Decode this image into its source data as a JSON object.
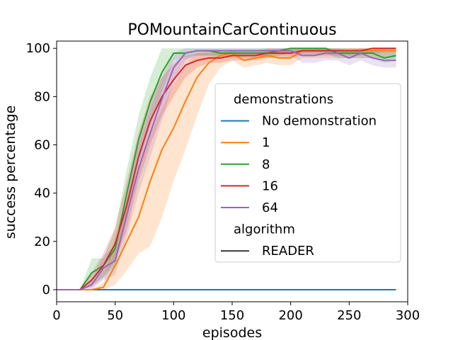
{
  "chart_data": {
    "type": "line",
    "title": "POMountainCarContinuous",
    "xlabel": "episodes",
    "ylabel": "success percentage",
    "xlim": [
      0,
      300
    ],
    "ylim": [
      -5,
      103
    ],
    "xticks": [
      0,
      50,
      100,
      150,
      200,
      250,
      300
    ],
    "yticks": [
      0,
      20,
      40,
      60,
      80,
      100
    ],
    "grid": false,
    "legend": {
      "placement": "center-right",
      "groups": [
        {
          "title": "demonstrations",
          "entries": [
            {
              "label": "No demonstration",
              "color": "#1f77b4"
            },
            {
              "label": "1",
              "color": "#ff7f0e"
            },
            {
              "label": "8",
              "color": "#2ca02c"
            },
            {
              "label": "16",
              "color": "#d62728"
            },
            {
              "label": "64",
              "color": "#9467bd"
            }
          ]
        },
        {
          "title": "algorithm",
          "entries": [
            {
              "label": "READER",
              "color": "#333333"
            }
          ]
        }
      ]
    },
    "x": [
      0,
      10,
      20,
      30,
      40,
      50,
      60,
      70,
      80,
      90,
      100,
      110,
      120,
      130,
      140,
      150,
      160,
      170,
      180,
      190,
      200,
      210,
      220,
      230,
      240,
      250,
      260,
      270,
      280,
      290
    ],
    "series": [
      {
        "name": "No demonstration",
        "color": "#1f77b4",
        "values": [
          0,
          0,
          0,
          0,
          0,
          0,
          0,
          0,
          0,
          0,
          0,
          0,
          0,
          0,
          0,
          0,
          0,
          0,
          0,
          0,
          0,
          0,
          0,
          0,
          0,
          0,
          0,
          0,
          0,
          0
        ],
        "lower": [
          0,
          0,
          0,
          0,
          0,
          0,
          0,
          0,
          0,
          0,
          0,
          0,
          0,
          0,
          0,
          0,
          0,
          0,
          0,
          0,
          0,
          0,
          0,
          0,
          0,
          0,
          0,
          0,
          0,
          0
        ],
        "upper": [
          0,
          0,
          0,
          0,
          0,
          0,
          0,
          0,
          0,
          0,
          0,
          0,
          0,
          0,
          0,
          0,
          0,
          0,
          0,
          0,
          0,
          0,
          0,
          0,
          0,
          0,
          0,
          0,
          0,
          0
        ]
      },
      {
        "name": "1",
        "color": "#ff7f0e",
        "values": [
          0,
          0,
          0,
          0,
          1,
          10,
          20,
          30,
          45,
          58,
          67,
          78,
          88,
          94,
          97,
          98,
          95,
          96,
          97,
          96,
          96,
          99,
          99,
          99,
          99,
          99,
          99,
          99,
          99,
          99
        ],
        "lower": [
          0,
          0,
          0,
          0,
          0,
          2,
          8,
          15,
          18,
          30,
          45,
          58,
          72,
          85,
          92,
          95,
          92,
          93,
          94,
          93,
          93,
          96,
          96,
          96,
          96,
          96,
          96,
          96,
          96,
          96
        ],
        "upper": [
          0,
          0,
          0,
          0,
          3,
          22,
          38,
          50,
          65,
          75,
          85,
          93,
          98,
          99,
          99,
          99,
          98,
          98,
          99,
          99,
          99,
          100,
          100,
          100,
          100,
          100,
          100,
          100,
          100,
          100
        ]
      },
      {
        "name": "8",
        "color": "#2ca02c",
        "values": [
          0,
          0,
          0,
          7,
          10,
          17,
          40,
          62,
          78,
          90,
          98,
          98,
          99,
          99,
          98,
          98,
          98,
          98,
          98,
          99,
          100,
          100,
          100,
          100,
          98,
          98,
          98,
          98,
          96,
          97
        ],
        "lower": [
          0,
          0,
          0,
          2,
          5,
          10,
          30,
          52,
          68,
          82,
          95,
          96,
          97,
          97,
          96,
          96,
          96,
          96,
          96,
          97,
          98,
          98,
          98,
          98,
          96,
          96,
          96,
          96,
          94,
          95
        ],
        "upper": [
          0,
          0,
          0,
          13,
          13,
          25,
          50,
          72,
          88,
          100,
          100,
          100,
          100,
          100,
          100,
          100,
          100,
          100,
          100,
          100,
          100,
          100,
          100,
          100,
          100,
          100,
          100,
          100,
          100,
          100
        ]
      },
      {
        "name": "16",
        "color": "#d62728",
        "values": [
          0,
          0,
          0,
          4,
          10,
          19,
          35,
          55,
          70,
          80,
          87,
          93,
          95,
          96,
          96,
          97,
          97,
          97,
          98,
          98,
          98,
          99,
          99,
          99,
          99,
          99,
          99,
          100,
          100,
          100
        ],
        "lower": [
          0,
          0,
          0,
          1,
          5,
          12,
          25,
          45,
          60,
          72,
          80,
          88,
          92,
          94,
          94,
          95,
          95,
          95,
          96,
          96,
          96,
          97,
          97,
          97,
          97,
          97,
          97,
          98,
          98,
          98
        ],
        "upper": [
          0,
          0,
          0,
          7,
          15,
          26,
          45,
          65,
          80,
          88,
          94,
          97,
          98,
          98,
          98,
          99,
          99,
          99,
          100,
          100,
          100,
          100,
          100,
          100,
          100,
          100,
          100,
          100,
          100,
          100
        ]
      },
      {
        "name": "64",
        "color": "#9467bd",
        "values": [
          0,
          0,
          0,
          2,
          9,
          12,
          31,
          50,
          65,
          79,
          92,
          98,
          99,
          99,
          99,
          99,
          99,
          99,
          99,
          99,
          99,
          97,
          97,
          98,
          98,
          96,
          98,
          96,
          95,
          95
        ],
        "lower": [
          0,
          0,
          0,
          0,
          4,
          6,
          22,
          40,
          55,
          70,
          86,
          95,
          97,
          97,
          97,
          97,
          97,
          97,
          97,
          97,
          97,
          94,
          94,
          95,
          95,
          93,
          95,
          93,
          92,
          92
        ],
        "upper": [
          0,
          0,
          0,
          4,
          14,
          18,
          40,
          60,
          75,
          88,
          98,
          100,
          100,
          100,
          100,
          100,
          100,
          100,
          100,
          100,
          100,
          100,
          100,
          100,
          100,
          99,
          100,
          99,
          98,
          98
        ]
      }
    ]
  }
}
